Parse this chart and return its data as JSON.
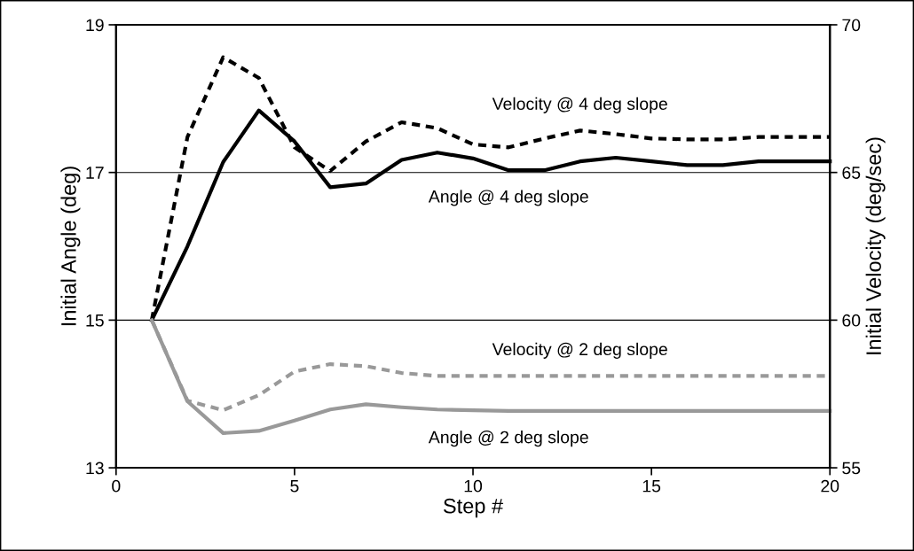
{
  "chart_data": {
    "type": "line",
    "xlabel": "Step #",
    "ylabel": "Initial Angle (deg)",
    "y2label": "Initial Velocity (deg/sec)",
    "x": [
      1,
      2,
      3,
      4,
      5,
      6,
      7,
      8,
      9,
      10,
      11,
      12,
      13,
      14,
      15,
      16,
      17,
      18,
      19,
      20
    ],
    "xlim": [
      0,
      20
    ],
    "xticks": [
      0,
      5,
      10,
      15,
      20
    ],
    "ylim": [
      13,
      19
    ],
    "yticks": [
      13,
      15,
      17,
      19
    ],
    "y2lim": [
      55,
      70
    ],
    "y2ticks": [
      55,
      60,
      65,
      70
    ],
    "grid": "y",
    "legend": false,
    "marker": "none",
    "series": [
      {
        "name": "Velocity @ 4 deg slope",
        "color": "#000000",
        "axis": "y2",
        "line_style": "dashed",
        "values": [
          60,
          66.2,
          68.9,
          68.2,
          65.85,
          65.05,
          66.05,
          66.7,
          66.5,
          65.95,
          65.85,
          66.15,
          66.42,
          66.3,
          66.15,
          66.12,
          66.12,
          66.2,
          66.2,
          66.2
        ]
      },
      {
        "name": "Angle @ 4 deg slope",
        "color": "#000000",
        "line_style": "solid",
        "values": [
          15,
          16.0,
          17.14,
          17.84,
          17.42,
          16.8,
          16.85,
          17.17,
          17.27,
          17.19,
          17.03,
          17.03,
          17.15,
          17.2,
          17.15,
          17.1,
          17.1,
          17.15,
          17.15,
          17.15
        ]
      },
      {
        "name": "Velocity @ 2 deg slope",
        "color": "#999999",
        "axis": "y2",
        "line_style": "dashed",
        "values": [
          60,
          57.27,
          56.95,
          57.46,
          58.26,
          58.51,
          58.44,
          58.21,
          58.11,
          58.11,
          58.11,
          58.11,
          58.11,
          58.11,
          58.11,
          58.11,
          58.11,
          58.11,
          58.11,
          58.11
        ]
      },
      {
        "name": "Angle @ 2 deg slope",
        "color": "#999999",
        "line_style": "solid",
        "values": [
          15,
          13.9,
          13.47,
          13.5,
          13.64,
          13.79,
          13.86,
          13.82,
          13.79,
          13.78,
          13.77,
          13.77,
          13.77,
          13.77,
          13.77,
          13.77,
          13.77,
          13.77,
          13.77,
          13.77
        ]
      }
    ]
  }
}
